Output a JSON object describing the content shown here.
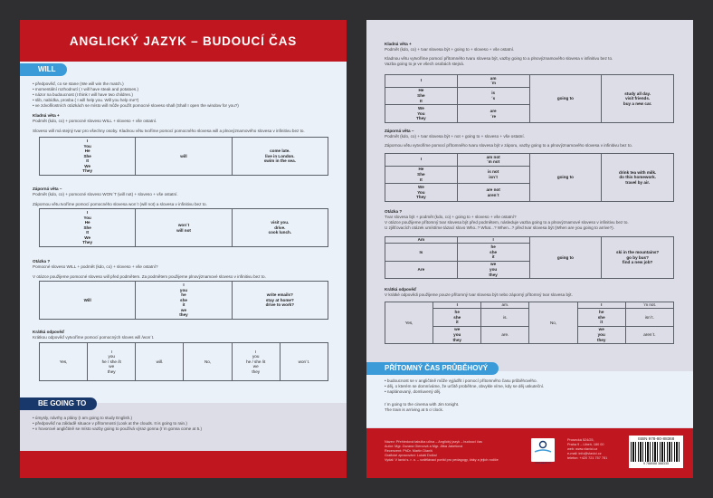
{
  "left": {
    "title": "ANGLICKÝ JAZYK – BUDOUCÍ ČAS",
    "will_tab": "WILL",
    "will_uses": [
      "• předpověď, co se stane (We will win the match.)",
      "• momentální rozhodnutí ( I will have steak and potatoes.)",
      "• názor na budoucnost (I think I will have two children.)",
      "• slib, nabídka, prosba ( I will help you. Will you help me?)",
      "• ve zdvořilostních otázkách se místo will může použít pomocné sloveso shall (Shall I open the window for you?)"
    ],
    "pos_head": "Kladná věta +",
    "pos_formula": "Podmět (kdo, co) + pomocné sloveso WILL +  sloveso + vše ostatní.",
    "pos_note": "Sloveso will má stejný tvar pro všechny osoby. Kladnou větu tvoříme pomocí pomocného slovesa will a plnovýznamového slovesa v infinitivu bez to.",
    "neg_head": "Záporná věta –",
    "neg_formula": "Podmět (kdo, co) + pomocné sloveso WON´T (will not) + sloveso + vše ostatní.",
    "neg_note": "Zápornou větu tvoříme pomocí pomocného slovesa won´t (will not) a slovesa v infinitivu bez to.",
    "q_head": "Otázka ?",
    "q_formula": "Pomocné sloveso WILL + podmět (kdo, co) + sloveso + vše ostatní?",
    "q_note": "V otázce použijeme pomocné sloveso will před podmětem. Za podmětem použijeme plnovýznamové sloveso v infinitivu bez to.",
    "sa_head": "Krátká odpověď",
    "sa_note": "Krátkou odpověď vytvoříme pomocí pomocných sloves will /won´t.",
    "going_tab": "BE GOING TO",
    "going_uses": [
      "• úmysly, návrhy a plány (I am going to study English.)",
      "• předpověď na základě situace v přítomnosti (Look at the clouds. It is going to rain.)",
      "• v hovorové angličtině se místo vazby going to používá výraz gonna (I´m gonna come at 5.)"
    ]
  },
  "right": {
    "pos_head": "Kladná věta +",
    "pos_formula": "Podmět (kdo, co) + tvar slovesa být + going to + sloveso + vše ostatní.",
    "pos_note": "Kladnou větu  vytvoříme pomocí přítomného tvaru slovesa být, vazby going to a plnovýznamového slovesa v infinitivu bez to.\nVazba going to je ve všech osobách stejná.",
    "neg_head": "Záporná věta –",
    "neg_formula": "Podmět (kdo, co) + tvar slovesa být + not + going to + sloveso + vše ostatní.",
    "neg_note": "Zápornou větu vytvoříme pomocí přítomného tvaru slovesa být v záporu, vazby going to a plnovýznamového slovesa v infinitivu bez to.",
    "q_head": "Otázka ?",
    "q_formula": "Tvar slovesa být + podmět (kdo, co) + going to + sloveso + vše ostatní?",
    "q_note": "V otázce použijeme přítomný tvar slovesa být před podmětem, následuje vazba going to a plnovýznamové sloveso v infinitivu bez to.\nU zjišťovacích otázek umístíme tázací slovo Who..? What...? When...? před tvar slovesa být (When are you going to arrive?).",
    "sa_head": "Krátká odpověď",
    "sa_note": "V krátké odpovědi použijeme pouze přítomný tvar slovesa být nebo záporný přítomný tvar slovesa být.",
    "pc_tab": "PŘÍTOMNÝ ČAS PRŮBĚHOVÝ",
    "pc_uses": [
      "• budoucnost se v angličtině může vyjádřit i pomocí přítomného času průběhového.",
      "• děj, o kterém se domníváme, že určitě proběhne, obvykle víme, kdy se děj uskuteční.",
      "• naplánovaný, domluvený děj."
    ],
    "pc_examples": "I´m going to the cinema with Jim tonight.\nThe train is arriving at 5 o´clock.",
    "footer_info": "Název: Přehledová tabulka učiva – Anglický jazyk – budoucí čas\nAutor: Mgr. Zuzana Giercová a Mgr. Jitka Jakešová\nRecenzent: PhDr. Martin Dianiš\nGrafické zpracování: Lukáš Dolžal\nVydal: V lavici s. r. o. – vzdělávací portál pro pedagogy, žáky a jejich rodiče",
    "logo_text": "www.vlavici.cz",
    "footer_address": "Prosecká 524/25,\nPraha 9 – Libeň, 180 00\nweb: www.vlavici.cz\ne-mail: info@vlavici.cz\ntelefon:  +420 721 757 781",
    "isbn": "ISBN 978-80-88368",
    "barcode_digits": "9 788088 368335"
  },
  "tables": {
    "l1": [
      [
        {
          "t": "I\nYou\nHe\nShe\nIt\nWe\nThey"
        },
        {
          "t": "will"
        },
        {
          "t": "come late.\nlive in London.\nswim in the sea."
        }
      ]
    ],
    "l2": [
      [
        {
          "t": "I\nYou\nHe\nShe\nIt\nWe\nThey"
        },
        {
          "t": "won´t\nwill not"
        },
        {
          "t": "visit you.\ndrive.\ncook lunch."
        }
      ]
    ],
    "l3": [
      [
        {
          "t": "Will"
        },
        {
          "t": "I\nyou\nhe\nshe\nit\nwe\nthey"
        },
        {
          "t": "write emails?\nstay at home?\ndrive to work?"
        }
      ]
    ],
    "l4": [
      [
        {
          "t": "Yes,",
          "n": 1
        },
        {
          "t": "I\nyou\nhe / she /it\nwe\nthey",
          "n": 1
        },
        {
          "t": "will.",
          "n": 1
        },
        {
          "t": "No,",
          "n": 1
        },
        {
          "t": "I\nyou\nhe / she /it\nwe\nthey",
          "n": 1
        },
        {
          "t": "won´t.",
          "n": 1
        }
      ]
    ],
    "r1": [
      [
        {
          "t": "I"
        },
        {
          "t": "am\n´m"
        },
        {
          "t": "going to",
          "rs": 3
        },
        {
          "t": "study all day.\nvisit friends.\nbuy a new car.",
          "rs": 3
        }
      ],
      [
        {
          "t": "He\nShe\nIt"
        },
        {
          "t": "is\n´s"
        }
      ],
      [
        {
          "t": "We\nYou\nThey"
        },
        {
          "t": "are\n´re"
        }
      ]
    ],
    "r2": [
      [
        {
          "t": "I"
        },
        {
          "t": "am not\n´m not"
        },
        {
          "t": "going to",
          "rs": 3
        },
        {
          "t": "drink tea with milk.\ndo this homework.\ntravel by air.",
          "rs": 3
        }
      ],
      [
        {
          "t": "He\nShe\nIt"
        },
        {
          "t": "is not\nisn´t"
        }
      ],
      [
        {
          "t": "We\nYou\nThey"
        },
        {
          "t": "are not\naren´t"
        }
      ]
    ],
    "r3": [
      [
        {
          "t": "Am"
        },
        {
          "t": "I"
        },
        {
          "t": "going to",
          "rs": 3
        },
        {
          "t": "ski in the mountains?\ngo by bus?\nfind a new job?",
          "rs": 3
        }
      ],
      [
        {
          "t": "Is"
        },
        {
          "t": "he\nshe\nit"
        }
      ],
      [
        {
          "t": "Are"
        },
        {
          "t": "we\nyou\nthey"
        }
      ]
    ],
    "r4": [
      [
        {
          "t": "Yes,",
          "rs": 3,
          "n": 1
        },
        {
          "t": "I"
        },
        {
          "t": "am.",
          "n": 1
        },
        {
          "t": "No,",
          "rs": 3,
          "n": 1
        },
        {
          "t": "I"
        },
        {
          "t": "´m not.",
          "n": 1
        }
      ],
      [
        {
          "t": "he\nshe\nit"
        },
        {
          "t": "is.",
          "n": 1
        },
        {
          "t": "he\nshe\nit"
        },
        {
          "t": "isn´t.",
          "n": 1
        }
      ],
      [
        {
          "t": "we\nyou\nthey"
        },
        {
          "t": "are.",
          "n": 1
        },
        {
          "t": "we\nyou\nthey"
        },
        {
          "t": "aren´t.",
          "n": 1
        }
      ]
    ]
  },
  "colors": {
    "red": "#c0161f",
    "blue": "#3a9bd8",
    "navy": "#18386b",
    "left_bg": "#eaf1f9",
    "right_bg": "#dcdde7"
  }
}
